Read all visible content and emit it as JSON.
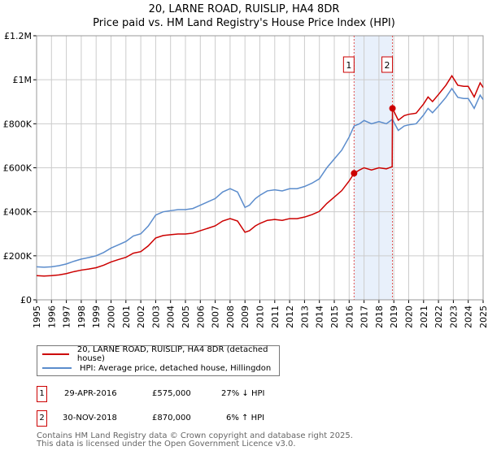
{
  "header": {
    "title": "20, LARNE ROAD, RUISLIP, HA4 8DR",
    "subtitle": "Price paid vs. HM Land Registry's House Price Index (HPI)"
  },
  "chart_data": {
    "type": "line",
    "title": "20, LARNE ROAD, RUISLIP, HA4 8DR",
    "subtitle": "Price paid vs. HM Land Registry's House Price Index (HPI)",
    "xlim": [
      1995,
      2025
    ],
    "ylim": [
      0,
      1200000
    ],
    "grid": true,
    "xticks": [
      "1995",
      "1996",
      "1997",
      "1998",
      "1999",
      "2000",
      "2001",
      "2002",
      "2003",
      "2004",
      "2005",
      "2006",
      "2007",
      "2008",
      "2009",
      "2010",
      "2011",
      "2012",
      "2013",
      "2014",
      "2015",
      "2016",
      "2017",
      "2018",
      "2019",
      "2020",
      "2021",
      "2022",
      "2023",
      "2024",
      "2025"
    ],
    "yticks": [
      {
        "v": 0,
        "label": "£0"
      },
      {
        "v": 200000,
        "label": "£200K"
      },
      {
        "v": 400000,
        "label": "£400K"
      },
      {
        "v": 600000,
        "label": "£600K"
      },
      {
        "v": 800000,
        "label": "£800K"
      },
      {
        "v": 1000000,
        "label": "£1M"
      },
      {
        "v": 1200000,
        "label": "£1.2M"
      }
    ],
    "colors": {
      "property": "#cc0000",
      "hpi": "#5b8ccc",
      "shade": "#e8f0fb"
    },
    "series": [
      {
        "name": "20, LARNE ROAD, RUISLIP, HA4 8DR (detached house)",
        "x": [
          1995,
          1995.5,
          1996,
          1996.5,
          1997,
          1997.5,
          1998,
          1998.5,
          1999,
          1999.5,
          2000,
          2000.5,
          2001,
          2001.5,
          2002,
          2002.5,
          2003,
          2003.5,
          2004,
          2004.5,
          2005,
          2005.5,
          2006,
          2006.5,
          2007,
          2007.5,
          2008,
          2008.5,
          2009,
          2009.3,
          2009.7,
          2010,
          2010.5,
          2011,
          2011.5,
          2012,
          2012.5,
          2013,
          2013.5,
          2014,
          2014.5,
          2015,
          2015.5,
          2016,
          2016.33,
          2016.7,
          2017,
          2017.5,
          2018,
          2018.5,
          2018.89,
          2018.91,
          2019.3,
          2019.7,
          2020,
          2020.5,
          2021,
          2021.3,
          2021.6,
          2022,
          2022.5,
          2022.9,
          2023.3,
          2023.7,
          2024,
          2024.4,
          2024.8,
          2025
        ],
        "values": [
          110000,
          108000,
          110000,
          113000,
          119000,
          128000,
          135000,
          140000,
          146000,
          157000,
          172000,
          183000,
          193000,
          212000,
          219000,
          245000,
          281000,
          292000,
          296000,
          299000,
          299000,
          303000,
          314000,
          325000,
          336000,
          358000,
          369000,
          358000,
          307000,
          314000,
          336000,
          347000,
          361000,
          365000,
          361000,
          369000,
          369000,
          376000,
          387000,
          402000,
          438000,
          467000,
          496000,
          540000,
          575000,
          590000,
          600000,
          590000,
          600000,
          595000,
          605000,
          870000,
          816000,
          837000,
          843000,
          848000,
          890000,
          922000,
          901000,
          933000,
          975000,
          1018000,
          975000,
          970000,
          970000,
          922000,
          986000,
          965000
        ]
      },
      {
        "name": "HPI: Average price, detached house, Hillingdon",
        "x": [
          1995,
          1995.5,
          1996,
          1996.5,
          1997,
          1997.5,
          1998,
          1998.5,
          1999,
          1999.5,
          2000,
          2000.5,
          2001,
          2001.5,
          2002,
          2002.5,
          2003,
          2003.5,
          2004,
          2004.5,
          2005,
          2005.5,
          2006,
          2006.5,
          2007,
          2007.5,
          2008,
          2008.5,
          2009,
          2009.3,
          2009.7,
          2010,
          2010.5,
          2011,
          2011.5,
          2012,
          2012.5,
          2013,
          2013.5,
          2014,
          2014.5,
          2015,
          2015.5,
          2016,
          2016.33,
          2016.7,
          2017,
          2017.5,
          2018,
          2018.5,
          2018.9,
          2019.3,
          2019.7,
          2020,
          2020.5,
          2021,
          2021.3,
          2021.6,
          2022,
          2022.5,
          2022.9,
          2023.3,
          2023.7,
          2024,
          2024.4,
          2024.8,
          2025
        ],
        "values": [
          150000,
          148000,
          150000,
          155000,
          163000,
          175000,
          185000,
          192000,
          200000,
          215000,
          235000,
          250000,
          265000,
          290000,
          300000,
          335000,
          385000,
          400000,
          405000,
          410000,
          410000,
          415000,
          430000,
          445000,
          460000,
          490000,
          505000,
          490000,
          420000,
          430000,
          460000,
          475000,
          495000,
          500000,
          495000,
          505000,
          505000,
          515000,
          530000,
          550000,
          600000,
          640000,
          680000,
          740000,
          790000,
          800000,
          815000,
          800000,
          810000,
          800000,
          820000,
          770000,
          790000,
          795000,
          800000,
          840000,
          870000,
          850000,
          880000,
          920000,
          960000,
          920000,
          915000,
          915000,
          870000,
          930000,
          910000
        ]
      }
    ],
    "sales": [
      {
        "label": "1",
        "x": 2016.33,
        "value": 575000
      },
      {
        "label": "2",
        "x": 2018.91,
        "value": 870000
      }
    ]
  },
  "legend": {
    "property": "20, LARNE ROAD, RUISLIP, HA4 8DR (detached house)",
    "hpi": "HPI: Average price, detached house, Hillingdon"
  },
  "transactions": [
    {
      "num": "1",
      "date": "29-APR-2016",
      "price": "£575,000",
      "hpi": "27% ↓ HPI"
    },
    {
      "num": "2",
      "date": "30-NOV-2018",
      "price": "£870,000",
      "hpi": "6% ↑ HPI"
    }
  ],
  "footer": {
    "line1": "Contains HM Land Registry data © Crown copyright and database right 2025.",
    "line2": "This data is licensed under the Open Government Licence v3.0."
  }
}
